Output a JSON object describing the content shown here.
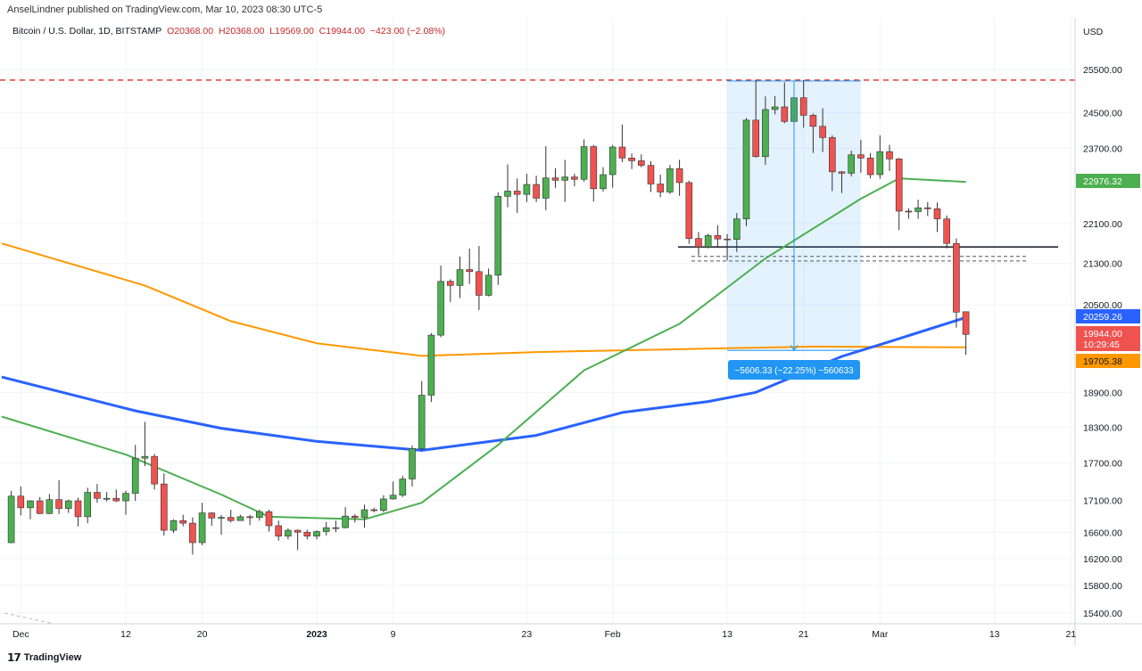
{
  "header": {
    "published": "AnselLindner published on TradingView.com, Mar 10, 2023 08:30 UTC-5",
    "symbol": "Bitcoin / U.S. Dollar, 1D, BITSTAMP",
    "open": "O20368.00",
    "high": "H20368.00",
    "low": "L19569.00",
    "close": "C19944.00",
    "change": "−423.00 (−2.08%)"
  },
  "footer": {
    "logo": "17",
    "brand": "TradingView"
  },
  "colors": {
    "up": "#4caf50",
    "down": "#ef5350",
    "ma_green": "#4caf50",
    "ma_blue": "#2962ff",
    "ma_orange": "#ff9800",
    "resistance": "#e53935",
    "measure": "#2196f3"
  },
  "chart_data": {
    "type": "candlestick",
    "scale": "log",
    "currency_label": "USD",
    "ylim": [
      15250,
      26000
    ],
    "y_ticks": [
      "25500.00",
      "24500.00",
      "23700.00",
      "22100.00",
      "21300.00",
      "20500.00",
      "18900.00",
      "18300.00",
      "17700.00",
      "17100.00",
      "16600.00",
      "16200.00",
      "15800.00",
      "15400.00"
    ],
    "x_ticks": [
      {
        "label": "Dec",
        "date": "2022-12-01"
      },
      {
        "label": "12",
        "date": "2022-12-12"
      },
      {
        "label": "20",
        "date": "2022-12-20"
      },
      {
        "label": "2023",
        "date": "2023-01-01",
        "bold": true
      },
      {
        "label": "9",
        "date": "2023-01-09"
      },
      {
        "label": "23",
        "date": "2023-01-23"
      },
      {
        "label": "Feb",
        "date": "2023-02-01"
      },
      {
        "label": "13",
        "date": "2023-02-13"
      },
      {
        "label": "21",
        "date": "2023-02-21"
      },
      {
        "label": "Mar",
        "date": "2023-03-01"
      },
      {
        "label": "13",
        "date": "2023-03-13"
      },
      {
        "label": "21",
        "date": "2023-03-21"
      }
    ],
    "candles": [
      [
        "2022-11-30",
        16440,
        17250,
        16430,
        17165
      ],
      [
        "2022-12-01",
        17165,
        17320,
        16860,
        16980
      ],
      [
        "2022-12-02",
        16980,
        17100,
        16800,
        17090
      ],
      [
        "2022-12-03",
        17090,
        17150,
        16880,
        16890
      ],
      [
        "2022-12-04",
        16890,
        17200,
        16880,
        17110
      ],
      [
        "2022-12-05",
        17110,
        17420,
        16880,
        16970
      ],
      [
        "2022-12-06",
        16970,
        17110,
        16900,
        17090
      ],
      [
        "2022-12-07",
        17090,
        17140,
        16690,
        16840
      ],
      [
        "2022-12-08",
        16840,
        17300,
        16740,
        17225
      ],
      [
        "2022-12-09",
        17225,
        17360,
        17060,
        17130
      ],
      [
        "2022-12-10",
        17130,
        17230,
        17080,
        17130
      ],
      [
        "2022-12-11",
        17130,
        17270,
        17070,
        17090
      ],
      [
        "2022-12-12",
        17090,
        17250,
        16870,
        17210
      ],
      [
        "2022-12-13",
        17210,
        18000,
        17090,
        17780
      ],
      [
        "2022-12-14",
        17780,
        18390,
        17650,
        17810
      ],
      [
        "2022-12-15",
        17810,
        17850,
        17270,
        17360
      ],
      [
        "2022-12-16",
        17360,
        17530,
        16550,
        16630
      ],
      [
        "2022-12-17",
        16630,
        16800,
        16590,
        16780
      ],
      [
        "2022-12-18",
        16780,
        16870,
        16690,
        16740
      ],
      [
        "2022-12-19",
        16740,
        16830,
        16260,
        16440
      ],
      [
        "2022-12-20",
        16440,
        17060,
        16400,
        16900
      ],
      [
        "2022-12-21",
        16900,
        16910,
        16700,
        16820
      ],
      [
        "2022-12-22",
        16820,
        16870,
        16560,
        16830
      ],
      [
        "2022-12-23",
        16830,
        16950,
        16750,
        16780
      ],
      [
        "2022-12-24",
        16780,
        16870,
        16780,
        16840
      ],
      [
        "2022-12-25",
        16840,
        16870,
        16710,
        16830
      ],
      [
        "2022-12-26",
        16830,
        16950,
        16780,
        16920
      ],
      [
        "2022-12-27",
        16920,
        16950,
        16610,
        16700
      ],
      [
        "2022-12-28",
        16700,
        16780,
        16470,
        16540
      ],
      [
        "2022-12-29",
        16540,
        16660,
        16490,
        16630
      ],
      [
        "2022-12-30",
        16630,
        16640,
        16330,
        16600
      ],
      [
        "2022-12-31",
        16600,
        16640,
        16490,
        16540
      ],
      [
        "2023-01-01",
        16540,
        16630,
        16490,
        16610
      ],
      [
        "2023-01-02",
        16610,
        16760,
        16550,
        16670
      ],
      [
        "2023-01-03",
        16670,
        16780,
        16600,
        16670
      ],
      [
        "2023-01-04",
        16670,
        16990,
        16660,
        16850
      ],
      [
        "2023-01-05",
        16850,
        16880,
        16750,
        16830
      ],
      [
        "2023-01-06",
        16830,
        17030,
        16670,
        16950
      ],
      [
        "2023-01-07",
        16950,
        16980,
        16910,
        16940
      ],
      [
        "2023-01-08",
        16940,
        17180,
        16910,
        17120
      ],
      [
        "2023-01-09",
        17120,
        17400,
        17110,
        17180
      ],
      [
        "2023-01-10",
        17180,
        17490,
        17150,
        17440
      ],
      [
        "2023-01-11",
        17440,
        17990,
        17320,
        17940
      ],
      [
        "2023-01-12",
        17940,
        19100,
        17900,
        18850
      ],
      [
        "2023-01-13",
        18850,
        19970,
        18730,
        19930
      ],
      [
        "2023-01-14",
        19930,
        21260,
        19890,
        20950
      ],
      [
        "2023-01-15",
        20950,
        20990,
        20550,
        20870
      ],
      [
        "2023-01-16",
        20870,
        21440,
        20630,
        21180
      ],
      [
        "2023-01-17",
        21180,
        21600,
        20900,
        21140
      ],
      [
        "2023-01-18",
        21140,
        21650,
        20400,
        20680
      ],
      [
        "2023-01-19",
        20680,
        21200,
        20660,
        21070
      ],
      [
        "2023-01-20",
        21070,
        22750,
        20880,
        22670
      ],
      [
        "2023-01-21",
        22670,
        23350,
        22440,
        22780
      ],
      [
        "2023-01-22",
        22780,
        23050,
        22320,
        22710
      ],
      [
        "2023-01-23",
        22710,
        23150,
        22550,
        22920
      ],
      [
        "2023-01-24",
        22920,
        23110,
        22550,
        22630
      ],
      [
        "2023-01-25",
        22630,
        23750,
        22380,
        23060
      ],
      [
        "2023-01-26",
        23060,
        23270,
        22850,
        23010
      ],
      [
        "2023-01-27",
        23010,
        23450,
        22550,
        23080
      ],
      [
        "2023-01-28",
        23080,
        23150,
        22880,
        23030
      ],
      [
        "2023-01-29",
        23030,
        23900,
        22980,
        23740
      ],
      [
        "2023-01-30",
        23740,
        23780,
        22560,
        22830
      ],
      [
        "2023-01-31",
        22830,
        23290,
        22770,
        23130
      ],
      [
        "2023-02-01",
        23130,
        23780,
        22850,
        23730
      ],
      [
        "2023-02-02",
        23730,
        24230,
        23400,
        23490
      ],
      [
        "2023-02-03",
        23490,
        23590,
        23250,
        23430
      ],
      [
        "2023-02-04",
        23430,
        23570,
        23290,
        23330
      ],
      [
        "2023-02-05",
        23330,
        23420,
        22760,
        22930
      ],
      [
        "2023-02-06",
        22930,
        23130,
        22650,
        22760
      ],
      [
        "2023-02-07",
        22760,
        23340,
        22720,
        23260
      ],
      [
        "2023-02-08",
        23260,
        23450,
        22680,
        22960
      ],
      [
        "2023-02-09",
        22960,
        23000,
        21690,
        21800
      ],
      [
        "2023-02-10",
        21800,
        21930,
        21460,
        21630
      ],
      [
        "2023-02-11",
        21630,
        21900,
        21600,
        21860
      ],
      [
        "2023-02-12",
        21860,
        22070,
        21640,
        21790
      ],
      [
        "2023-02-13",
        21790,
        21890,
        21360,
        21780
      ],
      [
        "2023-02-14",
        21780,
        22320,
        21530,
        22200
      ],
      [
        "2023-02-15",
        22200,
        24380,
        22050,
        24330
      ],
      [
        "2023-02-16",
        24330,
        25250,
        23500,
        23520
      ],
      [
        "2023-02-17",
        23520,
        24870,
        23340,
        24570
      ],
      [
        "2023-02-18",
        24570,
        24880,
        24460,
        24630
      ],
      [
        "2023-02-19",
        24630,
        25200,
        24260,
        24300
      ],
      [
        "2023-02-20",
        24300,
        25120,
        23850,
        24840
      ],
      [
        "2023-02-21",
        24840,
        25250,
        24160,
        24440
      ],
      [
        "2023-02-22",
        24440,
        24480,
        23600,
        24190
      ],
      [
        "2023-02-23",
        24190,
        24600,
        23620,
        23940
      ],
      [
        "2023-02-24",
        23940,
        23990,
        22780,
        23190
      ],
      [
        "2023-02-25",
        23190,
        23210,
        22740,
        23160
      ],
      [
        "2023-02-26",
        23160,
        23650,
        23090,
        23560
      ],
      [
        "2023-02-27",
        23560,
        23890,
        23170,
        23490
      ],
      [
        "2023-02-28",
        23490,
        23600,
        23050,
        23130
      ],
      [
        "2023-03-01",
        23130,
        23990,
        23040,
        23630
      ],
      [
        "2023-03-02",
        23630,
        23780,
        23210,
        23470
      ],
      [
        "2023-03-03",
        23470,
        23490,
        21970,
        22360
      ],
      [
        "2023-03-04",
        22360,
        22420,
        22200,
        22350
      ],
      [
        "2023-03-05",
        22350,
        22600,
        22200,
        22430
      ],
      [
        "2023-03-06",
        22430,
        22550,
        22260,
        22410
      ],
      [
        "2023-03-07",
        22410,
        22540,
        21930,
        22200
      ],
      [
        "2023-03-08",
        22200,
        22270,
        21600,
        21700
      ],
      [
        "2023-03-09",
        21700,
        21800,
        20070,
        20360
      ],
      [
        "2023-03-10",
        20368,
        20368,
        19569,
        19944
      ]
    ],
    "moving_averages": [
      {
        "color": "ma_orange",
        "points": [
          [
            "2022-11-29",
            21700
          ],
          [
            "2022-12-14",
            20870
          ],
          [
            "2022-12-23",
            20190
          ],
          [
            "2023-01-01",
            19780
          ],
          [
            "2023-01-12",
            19550
          ],
          [
            "2023-01-24",
            19620
          ],
          [
            "2023-02-13",
            19690
          ],
          [
            "2023-02-22",
            19720
          ],
          [
            "2023-03-10",
            19705.38
          ]
        ]
      },
      {
        "color": "ma_blue",
        "points": [
          [
            "2022-11-29",
            19170
          ],
          [
            "2022-12-13",
            18580
          ],
          [
            "2022-12-22",
            18280
          ],
          [
            "2023-01-01",
            18060
          ],
          [
            "2023-01-12",
            17910
          ],
          [
            "2023-01-24",
            18160
          ],
          [
            "2023-02-02",
            18550
          ],
          [
            "2023-02-11",
            18740
          ],
          [
            "2023-02-16",
            18900
          ],
          [
            "2023-02-25",
            19540
          ],
          [
            "2023-03-02",
            19810
          ],
          [
            "2023-03-10",
            20259.26
          ]
        ]
      },
      {
        "color": "ma_green",
        "points": [
          [
            "2022-11-29",
            18480
          ],
          [
            "2022-12-12",
            17840
          ],
          [
            "2022-12-22",
            17190
          ],
          [
            "2022-12-27",
            16840
          ],
          [
            "2023-01-06",
            16800
          ],
          [
            "2023-01-12",
            17060
          ],
          [
            "2023-01-20",
            18000
          ],
          [
            "2023-01-29",
            19290
          ],
          [
            "2023-02-08",
            20140
          ],
          [
            "2023-02-17",
            21400
          ],
          [
            "2023-02-27",
            22620
          ],
          [
            "2023-03-03",
            23050
          ],
          [
            "2023-03-10",
            22976.32
          ]
        ]
      }
    ],
    "price_labels": [
      {
        "text": "22976.32",
        "value": 22976.32,
        "color": "ma_green"
      },
      {
        "text": "20259.26",
        "value": 20259.26,
        "color": "ma_blue"
      },
      {
        "text": "19944.00",
        "sub": "10:29:45",
        "value": 19944,
        "color": "down"
      },
      {
        "text": "19705.38",
        "value": 19705.38,
        "color": "ma_orange"
      }
    ],
    "annotations": {
      "resistance_level": 25250,
      "support_level": 21630,
      "dashed_levels": [
        21440,
        21350
      ],
      "measure": {
        "from_date": "2023-02-13",
        "to_date": "2023-02-27",
        "top": 25230,
        "bottom": 19650,
        "label": "−5606.33 (−22.25%) −560633"
      }
    }
  }
}
